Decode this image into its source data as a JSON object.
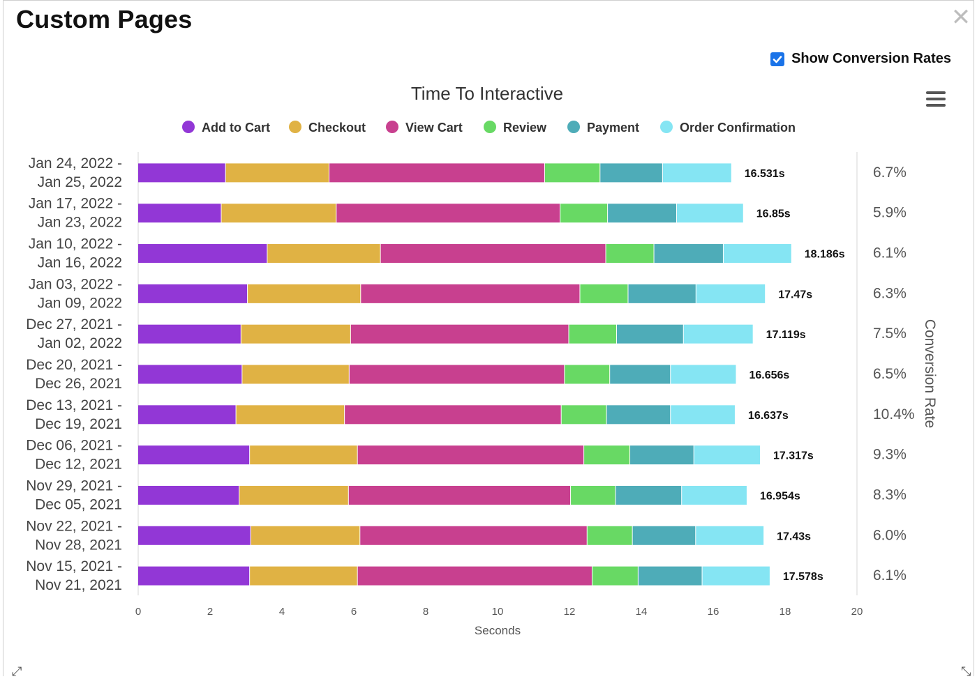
{
  "panel": {
    "title": "Custom Pages",
    "close_icon": "close-icon",
    "show_conversion_label": "Show Conversion Rates",
    "show_conversion_checked": true
  },
  "colors": {
    "accent": "#1a73e8"
  },
  "chart_data": {
    "type": "bar",
    "orientation": "horizontal",
    "stacked": true,
    "title": "Time To Interactive",
    "xlabel": "Seconds",
    "ylabel": "",
    "xlim": [
      0,
      20
    ],
    "xticks": [
      0,
      2,
      4,
      6,
      8,
      10,
      12,
      14,
      16,
      18,
      20
    ],
    "legend_position": "top",
    "categories": [
      [
        "Jan 24, 2022 -",
        "Jan 25, 2022"
      ],
      [
        "Jan 17, 2022 -",
        "Jan 23, 2022"
      ],
      [
        "Jan 10, 2022 -",
        "Jan 16, 2022"
      ],
      [
        "Jan 03, 2022 -",
        "Jan 09, 2022"
      ],
      [
        "Dec 27, 2021 -",
        "Jan 02, 2022"
      ],
      [
        "Dec 20, 2021 -",
        "Dec 26, 2021"
      ],
      [
        "Dec 13, 2021 -",
        "Dec 19, 2021"
      ],
      [
        "Dec 06, 2021 -",
        "Dec 12, 2021"
      ],
      [
        "Nov 29, 2021 -",
        "Dec 05, 2021"
      ],
      [
        "Nov 22, 2021 -",
        "Nov 28, 2021"
      ],
      [
        "Nov 15, 2021 -",
        "Nov 21, 2021"
      ]
    ],
    "series": [
      {
        "name": "Add to Cart",
        "color": "#9237d6",
        "values": [
          2.44,
          2.32,
          3.6,
          3.05,
          2.87,
          2.9,
          2.73,
          3.11,
          2.82,
          3.14,
          3.11
        ]
      },
      {
        "name": "Checkout",
        "color": "#e0b244",
        "values": [
          2.88,
          3.2,
          3.15,
          3.15,
          3.05,
          2.98,
          3.02,
          3.0,
          3.04,
          3.04,
          3.0
        ]
      },
      {
        "name": "View Cart",
        "color": "#c8408f",
        "values": [
          6.0,
          6.23,
          6.27,
          6.1,
          6.07,
          5.99,
          6.03,
          6.3,
          6.18,
          6.32,
          6.53
        ]
      },
      {
        "name": "Review",
        "color": "#68d964",
        "values": [
          1.54,
          1.32,
          1.34,
          1.34,
          1.33,
          1.26,
          1.26,
          1.28,
          1.25,
          1.26,
          1.28
        ]
      },
      {
        "name": "Payment",
        "color": "#4eacb8",
        "values": [
          1.74,
          1.92,
          1.93,
          1.89,
          1.86,
          1.69,
          1.78,
          1.78,
          1.84,
          1.76,
          1.78
        ]
      },
      {
        "name": "Order Confirmation",
        "color": "#85e5f3",
        "values": [
          1.92,
          1.86,
          1.9,
          1.93,
          1.94,
          1.83,
          1.8,
          1.85,
          1.82,
          1.9,
          1.89
        ]
      }
    ],
    "totals": [
      "16.531s",
      "16.85s",
      "18.186s",
      "17.47s",
      "17.119s",
      "16.656s",
      "16.637s",
      "17.317s",
      "16.954s",
      "17.43s",
      "17.578s"
    ],
    "conversion_rate_title": "Conversion Rate",
    "conversion_rates": [
      "6.7%",
      "5.9%",
      "6.1%",
      "6.3%",
      "7.5%",
      "6.5%",
      "10.4%",
      "9.3%",
      "8.3%",
      "6.0%",
      "6.1%"
    ]
  }
}
